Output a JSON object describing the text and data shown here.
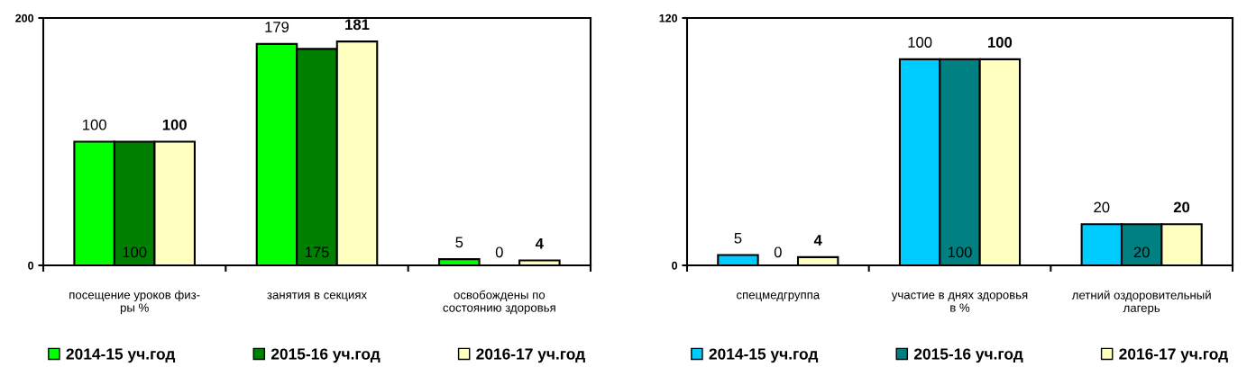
{
  "chart_data": [
    {
      "type": "bar",
      "categories": [
        "посещение уроков физ-\nры %",
        "занятия в секциях",
        "освобождены по\nсостоянию здоровья"
      ],
      "series": [
        {
          "name": "2014-15 уч.год",
          "color": "#00ff00",
          "values": [
            100,
            179,
            5
          ]
        },
        {
          "name": "2015-16 уч.год",
          "color": "#008000",
          "values": [
            100,
            175,
            0
          ]
        },
        {
          "name": "2016-17 уч.год",
          "color": "#ffffc0",
          "values": [
            100,
            181,
            4
          ]
        }
      ],
      "ylim": [
        0,
        200
      ],
      "yticks": [
        0,
        200
      ],
      "grid": false,
      "legend": "bottom",
      "data_labels": true
    },
    {
      "type": "bar",
      "categories": [
        "спецмедгруппа",
        "участие в днях здоровья\nв %",
        "летний оздоровительный\nлагерь"
      ],
      "series": [
        {
          "name": "2014-15 уч.год",
          "color": "#00ccff",
          "values": [
            5,
            100,
            20
          ]
        },
        {
          "name": "2015-16 уч.год",
          "color": "#008080",
          "values": [
            0,
            100,
            20
          ]
        },
        {
          "name": "2016-17 уч.год",
          "color": "#ffffc0",
          "values": [
            4,
            100,
            20
          ]
        }
      ],
      "ylim": [
        0,
        120
      ],
      "yticks": [
        0,
        120
      ],
      "grid": false,
      "legend": "bottom",
      "data_labels": true
    }
  ]
}
